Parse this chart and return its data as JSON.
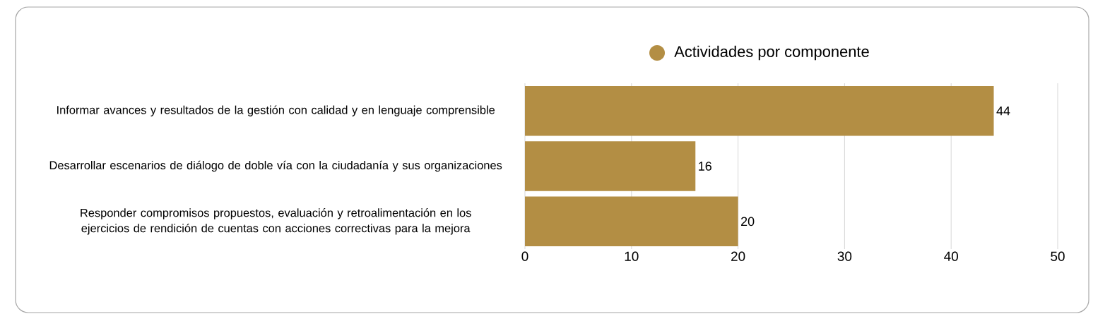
{
  "chart_data": {
    "type": "bar",
    "orientation": "horizontal",
    "categories": [
      "Informar avances y resultados de la gestión con calidad y en lenguaje comprensible",
      "Desarrollar escenarios de diálogo de doble vía con la ciudadanía y sus organizaciones",
      "Responder compromisos propuestos, evaluación y retroalimentación en los ejercicios de rendición de cuentas con acciones correctivas para la mejora"
    ],
    "series": [
      {
        "name": "Actividades por componente",
        "color": "#b38e44",
        "values": [
          44,
          16,
          20
        ]
      }
    ],
    "xlim": [
      0,
      50
    ],
    "xticks": [
      0,
      10,
      20,
      30,
      40,
      50
    ],
    "grid": "x",
    "legend": "top",
    "data_labels": true
  }
}
